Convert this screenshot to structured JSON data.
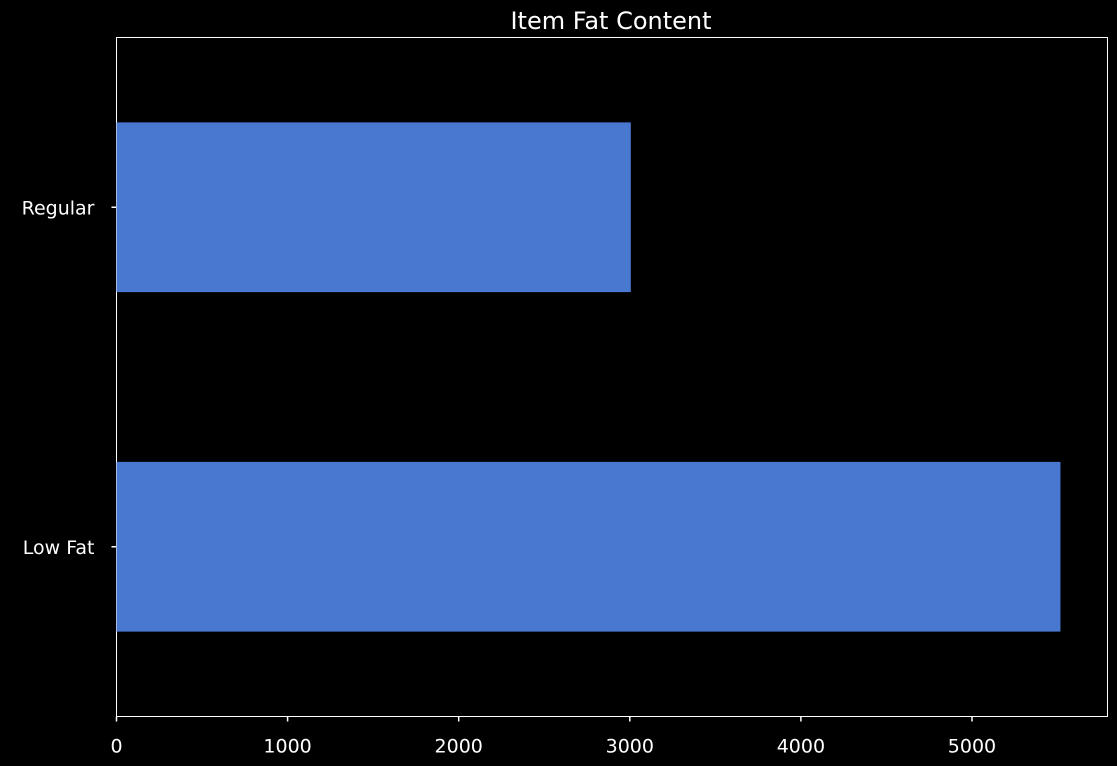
{
  "chart_data": {
    "type": "bar",
    "orientation": "horizontal",
    "title": "Item Fat Content",
    "xlabel": "",
    "ylabel": "",
    "categories": [
      "Low Fat",
      "Regular"
    ],
    "values": [
      5517,
      3006
    ],
    "xlim": [
      0,
      5792
    ],
    "xticks": [
      0,
      1000,
      2000,
      3000,
      4000,
      5000
    ],
    "grid": false,
    "legend": "none",
    "colors": {
      "background": "#000000",
      "bar": "#4878cf",
      "text": "#ffffff",
      "axis": "#ffffff"
    }
  }
}
